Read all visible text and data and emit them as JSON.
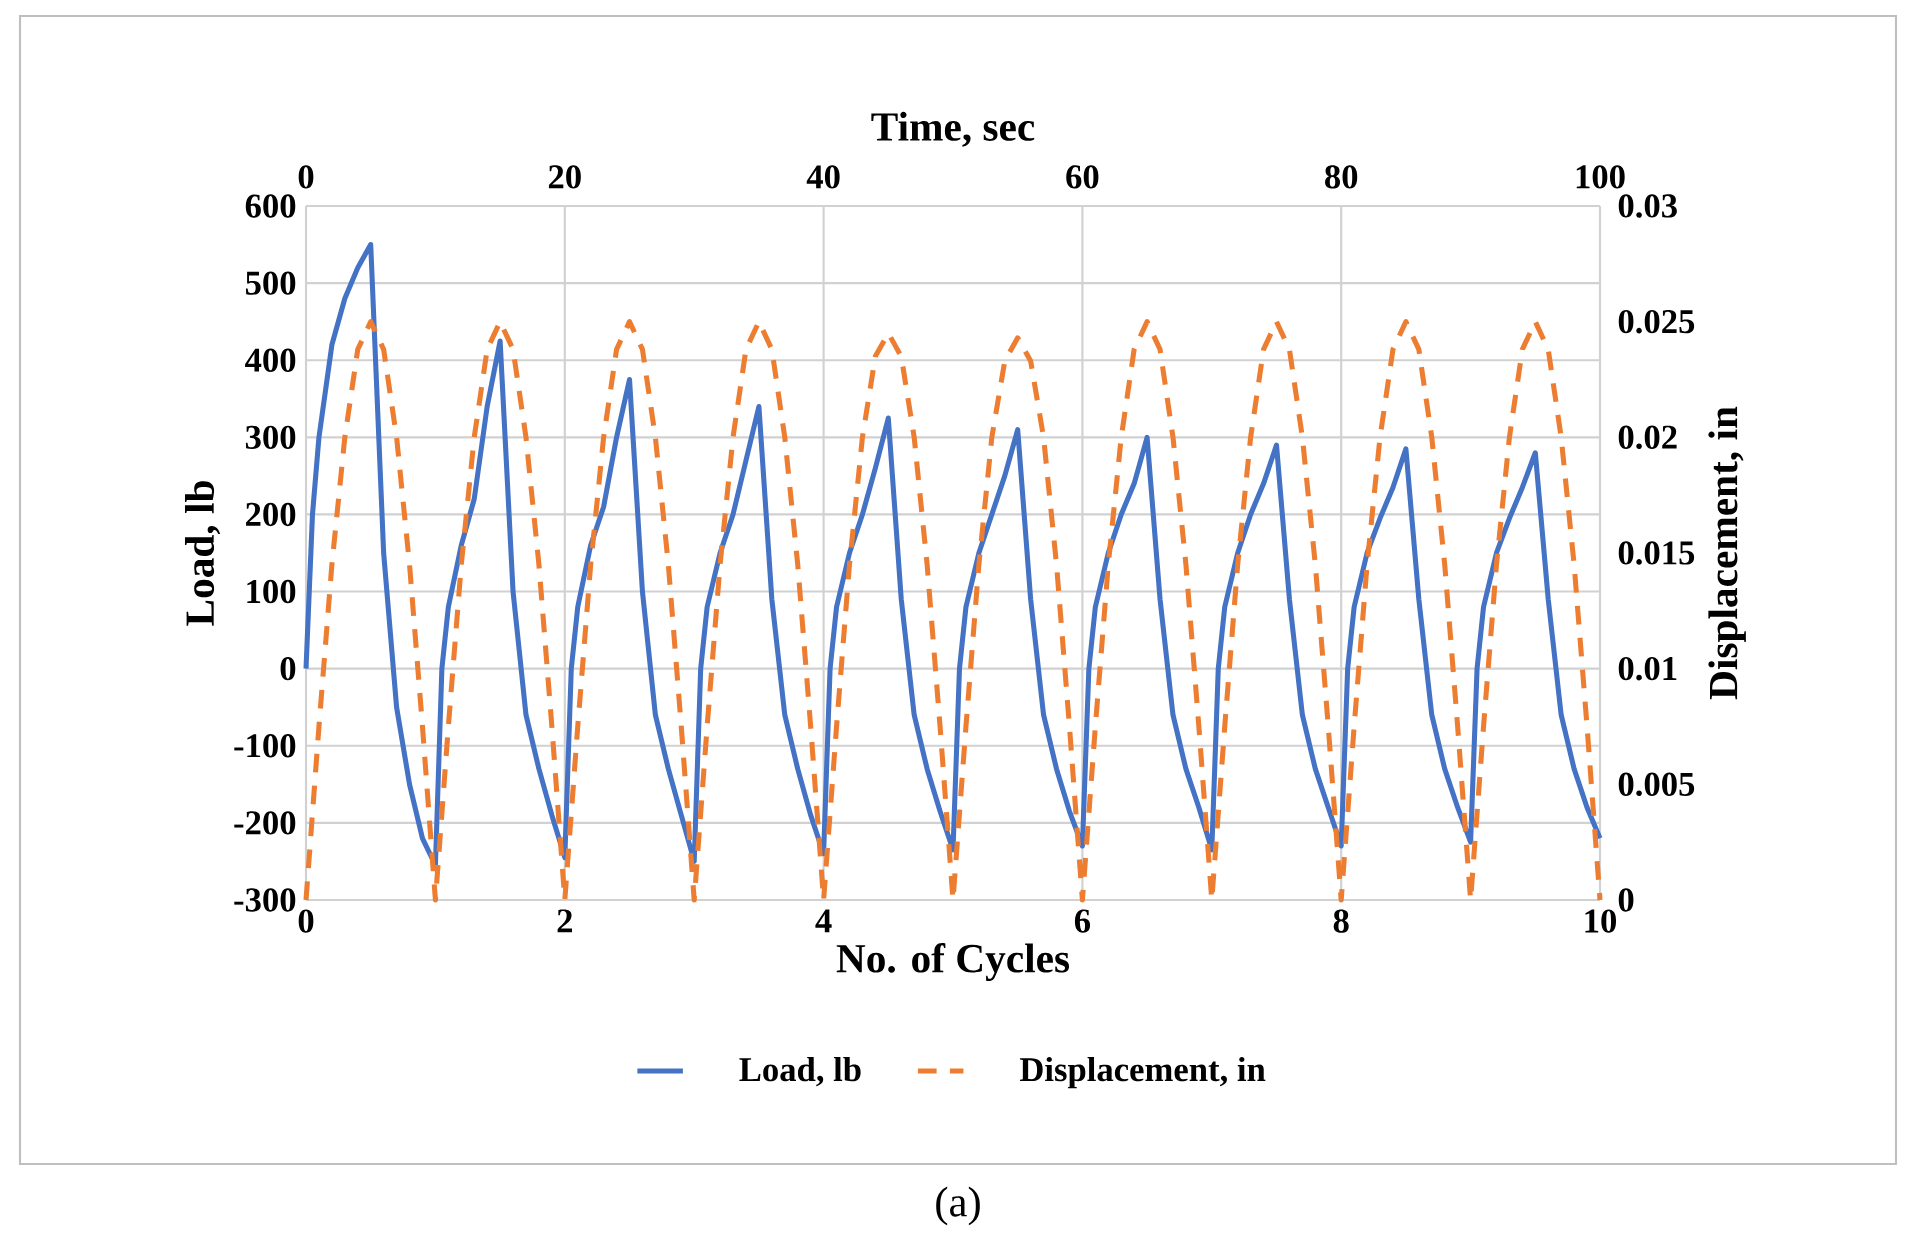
{
  "chart_data": {
    "type": "line",
    "xlabel": "No. of Cycles",
    "ylabel": "Load, lb",
    "y2label": "Displacement, in",
    "x2label": "Time, sec",
    "xlim": [
      0,
      10
    ],
    "xticks": [
      0,
      2,
      4,
      6,
      8,
      10
    ],
    "ylim": [
      -300,
      600
    ],
    "yticks": [
      -300,
      -200,
      -100,
      0,
      100,
      200,
      300,
      400,
      500,
      600
    ],
    "x2lim": [
      0,
      100
    ],
    "x2ticks": [
      0,
      20,
      40,
      60,
      80,
      100
    ],
    "y2lim": [
      0,
      0.03
    ],
    "y2ticks": [
      0,
      0.005,
      0.01,
      0.015,
      0.02,
      0.025,
      0.03
    ],
    "grid": true,
    "legend": "bottom",
    "annotations": [
      "(a)"
    ],
    "series": [
      {
        "name": "Load, lb",
        "color": "#4472c4",
        "line_style": "solid",
        "x": [
          0,
          0.05,
          0.1,
          0.2,
          0.3,
          0.4,
          0.5,
          0.6,
          0.7,
          0.8,
          0.9,
          1,
          1.05,
          1.1,
          1.2,
          1.3,
          1.4,
          1.5,
          1.6,
          1.7,
          1.8,
          1.9,
          2,
          2.05,
          2.1,
          2.2,
          2.3,
          2.4,
          2.5,
          2.6,
          2.7,
          2.8,
          2.9,
          3,
          3.05,
          3.1,
          3.2,
          3.3,
          3.4,
          3.5,
          3.6,
          3.7,
          3.8,
          3.9,
          4,
          4.05,
          4.1,
          4.2,
          4.3,
          4.4,
          4.5,
          4.6,
          4.7,
          4.8,
          4.9,
          5,
          5.05,
          5.1,
          5.2,
          5.3,
          5.4,
          5.5,
          5.6,
          5.7,
          5.8,
          5.9,
          6,
          6.05,
          6.1,
          6.2,
          6.3,
          6.4,
          6.5,
          6.6,
          6.7,
          6.8,
          6.9,
          7,
          7.05,
          7.1,
          7.2,
          7.3,
          7.4,
          7.5,
          7.6,
          7.7,
          7.8,
          7.9,
          8,
          8.05,
          8.1,
          8.2,
          8.3,
          8.4,
          8.5,
          8.6,
          8.7,
          8.8,
          8.9,
          9,
          9.05,
          9.1,
          9.2,
          9.3,
          9.4,
          9.5,
          9.6,
          9.7,
          9.8,
          9.9,
          10
        ],
        "values": [
          0,
          200,
          300,
          420,
          480,
          520,
          550,
          150,
          -50,
          -150,
          -220,
          -255,
          0,
          80,
          160,
          220,
          340,
          425,
          100,
          -60,
          -130,
          -190,
          -245,
          0,
          80,
          160,
          210,
          300,
          375,
          100,
          -60,
          -130,
          -190,
          -250,
          0,
          80,
          150,
          200,
          270,
          340,
          90,
          -60,
          -130,
          -190,
          -240,
          0,
          80,
          150,
          200,
          260,
          325,
          90,
          -60,
          -130,
          -185,
          -235,
          0,
          80,
          150,
          200,
          250,
          310,
          90,
          -60,
          -130,
          -185,
          -230,
          0,
          80,
          150,
          200,
          240,
          300,
          90,
          -60,
          -130,
          -180,
          -235,
          0,
          80,
          150,
          200,
          240,
          290,
          90,
          -60,
          -130,
          -180,
          -230,
          0,
          80,
          150,
          195,
          235,
          285,
          90,
          -60,
          -130,
          -180,
          -225,
          0,
          80,
          150,
          195,
          235,
          280,
          90,
          -60,
          -130,
          -180,
          -220
        ]
      },
      {
        "name": "Displacement, in",
        "color": "#ed7d31",
        "line_style": "dashed",
        "axis": "y2",
        "x": [
          0,
          0.1,
          0.2,
          0.3,
          0.4,
          0.5,
          0.6,
          0.7,
          0.8,
          0.9,
          1,
          1.1,
          1.2,
          1.3,
          1.4,
          1.5,
          1.6,
          1.7,
          1.8,
          1.9,
          2,
          2.1,
          2.2,
          2.3,
          2.4,
          2.5,
          2.6,
          2.7,
          2.8,
          2.9,
          3,
          3.1,
          3.2,
          3.3,
          3.4,
          3.5,
          3.6,
          3.7,
          3.8,
          3.9,
          4,
          4.1,
          4.2,
          4.3,
          4.4,
          4.5,
          4.6,
          4.7,
          4.8,
          4.9,
          5,
          5.1,
          5.2,
          5.3,
          5.4,
          5.5,
          5.6,
          5.7,
          5.8,
          5.9,
          6,
          6.1,
          6.2,
          6.3,
          6.4,
          6.5,
          6.6,
          6.7,
          6.8,
          6.9,
          7,
          7.1,
          7.2,
          7.3,
          7.4,
          7.5,
          7.6,
          7.7,
          7.8,
          7.9,
          8,
          8.1,
          8.2,
          8.3,
          8.4,
          8.5,
          8.6,
          8.7,
          8.8,
          8.9,
          9,
          9.1,
          9.2,
          9.3,
          9.4,
          9.5,
          9.6,
          9.7,
          9.8,
          9.9,
          10
        ],
        "values": [
          0,
          0.0075,
          0.0145,
          0.02,
          0.0238,
          0.025,
          0.0238,
          0.02,
          0.0145,
          0.0075,
          0,
          0.0075,
          0.0145,
          0.02,
          0.0238,
          0.025,
          0.0238,
          0.02,
          0.0145,
          0.0075,
          0,
          0.0075,
          0.0145,
          0.02,
          0.0238,
          0.025,
          0.0238,
          0.02,
          0.0145,
          0.0075,
          0,
          0.0075,
          0.0145,
          0.02,
          0.0238,
          0.025,
          0.0238,
          0.02,
          0.0145,
          0.0075,
          0,
          0.0075,
          0.0145,
          0.02,
          0.0235,
          0.0245,
          0.0235,
          0.02,
          0.0145,
          0.0075,
          0,
          0.0075,
          0.0145,
          0.02,
          0.0233,
          0.0243,
          0.0233,
          0.02,
          0.0145,
          0.0075,
          0,
          0.0075,
          0.0145,
          0.02,
          0.0238,
          0.025,
          0.0238,
          0.02,
          0.0145,
          0.0075,
          0,
          0.0075,
          0.0145,
          0.02,
          0.0238,
          0.025,
          0.0238,
          0.02,
          0.0145,
          0.0075,
          0,
          0.0075,
          0.0145,
          0.02,
          0.0238,
          0.025,
          0.0238,
          0.02,
          0.0145,
          0.0075,
          0,
          0.0075,
          0.0145,
          0.02,
          0.0238,
          0.025,
          0.0238,
          0.02,
          0.0145,
          0.0075,
          0
        ]
      }
    ]
  }
}
